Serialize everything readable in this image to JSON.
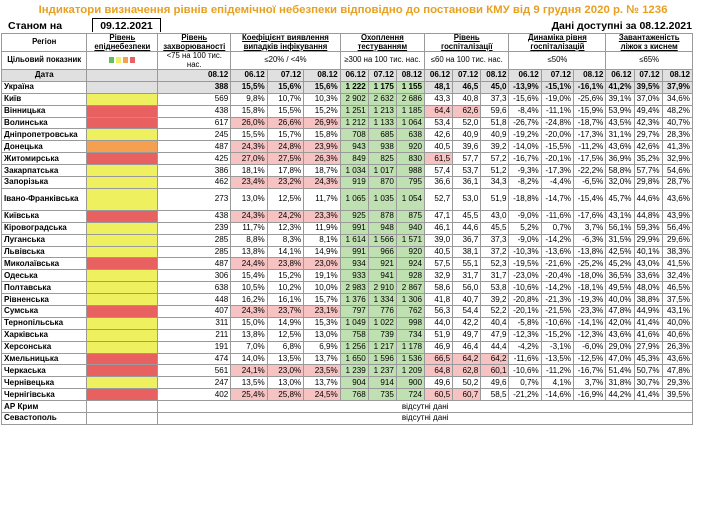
{
  "title": "Індикатори визначення рівнів епідемічної небезпеки відповідно до постанови КМУ від 9 грудня 2020 р. № 1236",
  "status_label": "Станом на",
  "status_date": "09.12.2021",
  "data_available": "Дані доступні за 08.12.2021",
  "headers": {
    "region": "Регіон",
    "level": "Рівень епіднебезпеки",
    "incidence": "Рівень захворюваності",
    "detection": "Коефіцієнт виявлення випадків інфікування",
    "testing": "Охоплення тестуванням",
    "hosp": "Рівень госпіталізації",
    "hosp_dyn": "Динаміка рівня госпіталізацій",
    "beds": "Завантаженість ліжок з киснем",
    "target_indicator": "Цільовий показник",
    "t_incidence": "<75 на 100 тис. нас.",
    "t_detection": "≤20% / <4%",
    "t_testing": "≥300 на 100 тис. нас.",
    "t_hosp": "≤60 на 100 тис. нас.",
    "t_hosp_dyn": "≤50%",
    "t_beds": "≤65%",
    "date_label": "Дата"
  },
  "dates": {
    "incidence": "08.12",
    "detection": [
      "06.12",
      "07.12",
      "08.12"
    ],
    "testing": [
      "06.12",
      "07.12",
      "08.12"
    ],
    "hosp": [
      "06.12",
      "07.12",
      "08.12"
    ],
    "hosp_dyn": [
      "06.12",
      "07.12",
      "08.12"
    ],
    "beds": [
      "06.12",
      "07.12",
      "08.12"
    ]
  },
  "colors": {
    "red": "#e86060",
    "yellow": "#eef060",
    "orange": "#f4a050",
    "green": "#60c060",
    "pink": "#f6c2c2",
    "light_green": "#bfe0b0"
  },
  "rows": [
    {
      "name": "Україна",
      "level": "",
      "inc": "388",
      "det": [
        "15,5%",
        "15,6%",
        "15,6%"
      ],
      "test": [
        "1 222",
        "1 175",
        "1 155"
      ],
      "hosp": [
        "48,1",
        "46,5",
        "45,0"
      ],
      "dyn": [
        "-13,9%",
        "-15,1%",
        "-16,1%"
      ],
      "beds": [
        "41,2%",
        "39,5%",
        "37,9%"
      ]
    },
    {
      "name": "Київ",
      "level": "yellow",
      "inc": "569",
      "det": [
        "9,8%",
        "10,7%",
        "10,3%"
      ],
      "test": [
        "2 902",
        "2 632",
        "2 686"
      ],
      "hosp": [
        "43,3",
        "40,8",
        "37,3"
      ],
      "dyn": [
        "-15,6%",
        "-19,0%",
        "-25,6%"
      ],
      "beds": [
        "39,1%",
        "37,0%",
        "34,6%"
      ]
    },
    {
      "name": "Вінницька",
      "level": "red",
      "inc": "438",
      "det": [
        "15,8%",
        "15,5%",
        "15,2%"
      ],
      "test": [
        "1 251",
        "1 213",
        "1 185"
      ],
      "hosp": [
        "64,4",
        "62,6",
        "59,6"
      ],
      "dyn": [
        "-8,4%",
        "-11,1%",
        "-15,9%"
      ],
      "beds": [
        "53,9%",
        "49,4%",
        "48,2%"
      ]
    },
    {
      "name": "Волинська",
      "level": "red",
      "inc": "617",
      "det": [
        "26,0%",
        "26,6%",
        "26,9%"
      ],
      "test": [
        "1 212",
        "1 133",
        "1 064"
      ],
      "hosp": [
        "53,4",
        "52,0",
        "51,8"
      ],
      "dyn": [
        "-26,7%",
        "-24,8%",
        "-18,7%"
      ],
      "beds": [
        "43,5%",
        "42,3%",
        "40,7%"
      ]
    },
    {
      "name": "Дніпропетровська",
      "level": "yellow",
      "inc": "245",
      "det": [
        "15,5%",
        "15,7%",
        "15,8%"
      ],
      "test": [
        "708",
        "685",
        "638"
      ],
      "hosp": [
        "42,6",
        "40,9",
        "40,9"
      ],
      "dyn": [
        "-19,2%",
        "-20,0%",
        "-17,3%"
      ],
      "beds": [
        "31,1%",
        "29,7%",
        "28,3%"
      ]
    },
    {
      "name": "Донецька",
      "level": "orange",
      "inc": "487",
      "det": [
        "24,3%",
        "24,8%",
        "23,9%"
      ],
      "test": [
        "943",
        "938",
        "920"
      ],
      "hosp": [
        "40,5",
        "39,6",
        "39,2"
      ],
      "dyn": [
        "-14,0%",
        "-15,5%",
        "-11,2%"
      ],
      "beds": [
        "43,6%",
        "42,6%",
        "41,3%"
      ]
    },
    {
      "name": "Житомирська",
      "level": "red",
      "inc": "425",
      "det": [
        "27,0%",
        "27,5%",
        "26,3%"
      ],
      "test": [
        "849",
        "825",
        "830"
      ],
      "hosp": [
        "61,5",
        "57,7",
        "57,2"
      ],
      "dyn": [
        "-16,7%",
        "-20,1%",
        "-17,5%"
      ],
      "beds": [
        "36,9%",
        "35,2%",
        "32,9%"
      ]
    },
    {
      "name": "Закарпатська",
      "level": "yellow",
      "inc": "386",
      "det": [
        "18,1%",
        "17,8%",
        "18,7%"
      ],
      "test": [
        "1 034",
        "1 017",
        "988"
      ],
      "hosp": [
        "57,4",
        "53,7",
        "51,2"
      ],
      "dyn": [
        "-9,3%",
        "-17,3%",
        "-22,2%"
      ],
      "beds": [
        "58,8%",
        "57,7%",
        "54,6%"
      ]
    },
    {
      "name": "Запорізька",
      "level": "yellow",
      "inc": "462",
      "det": [
        "23,4%",
        "23,2%",
        "24,3%"
      ],
      "test": [
        "919",
        "870",
        "795"
      ],
      "hosp": [
        "36,6",
        "36,1",
        "34,3"
      ],
      "dyn": [
        "-8,2%",
        "-4,4%",
        "-6,5%"
      ],
      "beds": [
        "32,0%",
        "29,8%",
        "28,7%"
      ]
    },
    {
      "name": "Івано-Франківська",
      "level": "yellow",
      "inc": "273",
      "det": [
        "13,0%",
        "12,5%",
        "11,7%"
      ],
      "test": [
        "1 065",
        "1 035",
        "1 054"
      ],
      "hosp": [
        "52,7",
        "53,0",
        "51,9"
      ],
      "dyn": [
        "-18,8%",
        "-14,7%",
        "-15,4%"
      ],
      "beds": [
        "45,7%",
        "44,6%",
        "43,6%"
      ],
      "tall": true
    },
    {
      "name": "Київська",
      "level": "red",
      "inc": "438",
      "det": [
        "24,3%",
        "24,2%",
        "23,3%"
      ],
      "test": [
        "925",
        "878",
        "875"
      ],
      "hosp": [
        "47,1",
        "45,5",
        "43,0"
      ],
      "dyn": [
        "-9,0%",
        "-11,6%",
        "-17,6%"
      ],
      "beds": [
        "43,1%",
        "44,8%",
        "43,9%"
      ]
    },
    {
      "name": "Кіровоградська",
      "level": "yellow",
      "inc": "239",
      "det": [
        "11,7%",
        "12,3%",
        "11,9%"
      ],
      "test": [
        "991",
        "948",
        "940"
      ],
      "hosp": [
        "46,1",
        "44,6",
        "45,5"
      ],
      "dyn": [
        "5,2%",
        "0,7%",
        "3,7%"
      ],
      "beds": [
        "56,1%",
        "59,3%",
        "56,4%"
      ]
    },
    {
      "name": "Луганська",
      "level": "yellow",
      "inc": "285",
      "det": [
        "8,8%",
        "8,3%",
        "8,1%"
      ],
      "test": [
        "1 614",
        "1 566",
        "1 571"
      ],
      "hosp": [
        "39,0",
        "36,7",
        "37,3"
      ],
      "dyn": [
        "-9,0%",
        "-14,2%",
        "-6,3%"
      ],
      "beds": [
        "31,5%",
        "29,9%",
        "29,6%"
      ]
    },
    {
      "name": "Львівська",
      "level": "yellow",
      "inc": "285",
      "det": [
        "13,8%",
        "14,1%",
        "14,9%"
      ],
      "test": [
        "991",
        "966",
        "920"
      ],
      "hosp": [
        "40,5",
        "38,1",
        "37,2"
      ],
      "dyn": [
        "-10,3%",
        "-13,6%",
        "-13,8%"
      ],
      "beds": [
        "42,5%",
        "40,1%",
        "38,3%"
      ]
    },
    {
      "name": "Миколаївська",
      "level": "red",
      "inc": "487",
      "det": [
        "24,4%",
        "23,8%",
        "23,0%"
      ],
      "test": [
        "934",
        "921",
        "924"
      ],
      "hosp": [
        "57,5",
        "55,1",
        "52,3"
      ],
      "dyn": [
        "-19,5%",
        "-21,6%",
        "-25,2%"
      ],
      "beds": [
        "45,2%",
        "43,0%",
        "41,5%"
      ]
    },
    {
      "name": "Одеська",
      "level": "yellow",
      "inc": "306",
      "det": [
        "15,4%",
        "15,2%",
        "19,1%"
      ],
      "test": [
        "933",
        "941",
        "928"
      ],
      "hosp": [
        "32,9",
        "31,7",
        "31,7"
      ],
      "dyn": [
        "-23,0%",
        "-20,4%",
        "-18,0%"
      ],
      "beds": [
        "36,5%",
        "33,6%",
        "32,4%"
      ]
    },
    {
      "name": "Полтавська",
      "level": "yellow",
      "inc": "638",
      "det": [
        "10,5%",
        "10,2%",
        "10,0%"
      ],
      "test": [
        "2 983",
        "2 910",
        "2 867"
      ],
      "hosp": [
        "58,6",
        "56,0",
        "53,8"
      ],
      "dyn": [
        "-10,6%",
        "-14,2%",
        "-18,1%"
      ],
      "beds": [
        "49,5%",
        "48,0%",
        "46,5%"
      ]
    },
    {
      "name": "Рівненська",
      "level": "yellow",
      "inc": "448",
      "det": [
        "16,2%",
        "16,1%",
        "15,7%"
      ],
      "test": [
        "1 376",
        "1 334",
        "1 306"
      ],
      "hosp": [
        "41,8",
        "40,7",
        "39,2"
      ],
      "dyn": [
        "-20,8%",
        "-21,3%",
        "-19,3%"
      ],
      "beds": [
        "40,0%",
        "38,8%",
        "37,5%"
      ]
    },
    {
      "name": "Сумська",
      "level": "red",
      "inc": "407",
      "det": [
        "24,3%",
        "23,7%",
        "23,1%"
      ],
      "test": [
        "797",
        "776",
        "762"
      ],
      "hosp": [
        "56,3",
        "54,4",
        "52,2"
      ],
      "dyn": [
        "-20,1%",
        "-21,5%",
        "-23,3%"
      ],
      "beds": [
        "47,8%",
        "44,9%",
        "43,1%"
      ]
    },
    {
      "name": "Тернопільська",
      "level": "yellow",
      "inc": "311",
      "det": [
        "15,0%",
        "14,9%",
        "15,3%"
      ],
      "test": [
        "1 049",
        "1 022",
        "998"
      ],
      "hosp": [
        "44,0",
        "42,2",
        "40,4"
      ],
      "dyn": [
        "-5,8%",
        "-10,6%",
        "-14,1%"
      ],
      "beds": [
        "42,0%",
        "41,4%",
        "40,0%"
      ]
    },
    {
      "name": "Харківська",
      "level": "yellow",
      "inc": "211",
      "det": [
        "13,8%",
        "12,5%",
        "13,0%"
      ],
      "test": [
        "758",
        "739",
        "734"
      ],
      "hosp": [
        "51,9",
        "49,7",
        "47,9"
      ],
      "dyn": [
        "-12,3%",
        "-15,2%",
        "-12,3%"
      ],
      "beds": [
        "43,6%",
        "41,6%",
        "40,6%"
      ]
    },
    {
      "name": "Херсонська",
      "level": "yellow",
      "inc": "191",
      "det": [
        "7,0%",
        "6,8%",
        "6,9%"
      ],
      "test": [
        "1 256",
        "1 217",
        "1 178"
      ],
      "hosp": [
        "46,9",
        "46,4",
        "44,4"
      ],
      "dyn": [
        "-4,2%",
        "-3,1%",
        "-6,0%"
      ],
      "beds": [
        "29,0%",
        "27,9%",
        "26,3%"
      ]
    },
    {
      "name": "Хмельницька",
      "level": "red",
      "inc": "474",
      "det": [
        "14,0%",
        "13,5%",
        "13,7%"
      ],
      "test": [
        "1 650",
        "1 596",
        "1 536"
      ],
      "hosp": [
        "66,5",
        "64,2",
        "64,2"
      ],
      "dyn": [
        "-11,6%",
        "-13,5%",
        "-12,5%"
      ],
      "beds": [
        "47,0%",
        "45,3%",
        "43,6%"
      ]
    },
    {
      "name": "Черкаська",
      "level": "red",
      "inc": "561",
      "det": [
        "24,1%",
        "23,0%",
        "23,5%"
      ],
      "test": [
        "1 239",
        "1 237",
        "1 209"
      ],
      "hosp": [
        "64,8",
        "62,8",
        "60,1"
      ],
      "dyn": [
        "-10,6%",
        "-11,2%",
        "-16,7%"
      ],
      "beds": [
        "51,4%",
        "50,7%",
        "47,8%"
      ]
    },
    {
      "name": "Чернівецька",
      "level": "yellow",
      "inc": "247",
      "det": [
        "13,5%",
        "13,0%",
        "13,7%"
      ],
      "test": [
        "904",
        "914",
        "900"
      ],
      "hosp": [
        "49,6",
        "50,2",
        "49,6"
      ],
      "dyn": [
        "0,7%",
        "4,1%",
        "3,7%"
      ],
      "beds": [
        "31,8%",
        "30,7%",
        "29,3%"
      ]
    },
    {
      "name": "Чернігівська",
      "level": "red",
      "inc": "402",
      "det": [
        "25,4%",
        "25,8%",
        "24,5%"
      ],
      "test": [
        "768",
        "735",
        "724"
      ],
      "hosp": [
        "60,5",
        "60,7",
        "58,5"
      ],
      "dyn": [
        "-21,2%",
        "-14,6%",
        "-16,9%"
      ],
      "beds": [
        "44,2%",
        "41,4%",
        "39,5%"
      ]
    }
  ],
  "missing_rows": [
    {
      "name": "АР Крим",
      "text": "відсутні дані"
    },
    {
      "name": "Севастополь",
      "text": "відсутні дані"
    }
  ]
}
